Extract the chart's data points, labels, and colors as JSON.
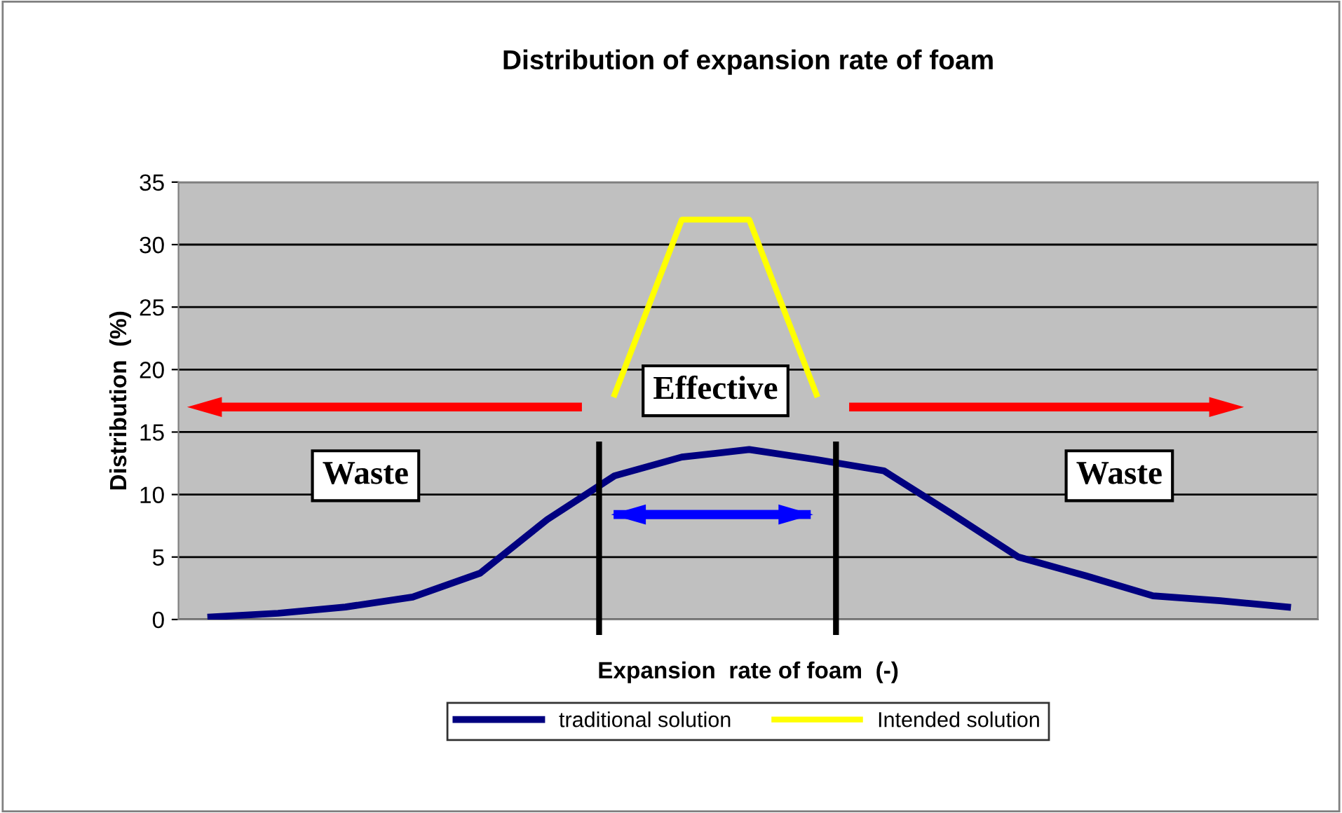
{
  "chart_data": {
    "type": "line",
    "title": "Distribution of expansion rate of foam",
    "xlabel": "Expansion  rate of foam  (-)",
    "ylabel": "Distribution  (%)",
    "categories": [
      null,
      null,
      null,
      null,
      null,
      null,
      null,
      null,
      null,
      null,
      null,
      null,
      null,
      null,
      null,
      null,
      null
    ],
    "series": [
      {
        "name": "traditional solution",
        "color": "#000080",
        "values": [
          0.2,
          0.5,
          1.0,
          1.8,
          3.7,
          8.0,
          11.5,
          13.0,
          13.6,
          12.8,
          11.9,
          8.5,
          5.0,
          3.5,
          1.9,
          1.5,
          1.0
        ]
      },
      {
        "name": "Intended solution",
        "color": "#ffff00",
        "values": [
          null,
          null,
          null,
          null,
          null,
          null,
          18,
          32,
          32,
          18,
          null,
          null,
          null,
          null,
          null,
          null,
          null
        ]
      }
    ],
    "ylim": [
      0,
      35
    ],
    "yticks": [
      0,
      5,
      10,
      15,
      20,
      25,
      30,
      35
    ],
    "grid": "y",
    "legend": "bottom",
    "marker": "none",
    "line_style": "solid",
    "annotations": [
      "Effective",
      "Waste",
      "Waste"
    ]
  }
}
